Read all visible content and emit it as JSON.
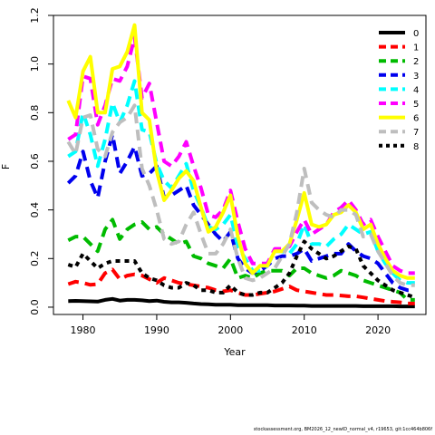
{
  "chart_data": {
    "type": "line",
    "title": "",
    "xlabel": "Year",
    "ylabel": "F",
    "xlim": [
      1976,
      2026.5
    ],
    "ylim": [
      -0.03,
      1.2
    ],
    "xticks": [
      1980,
      1990,
      2000,
      2010,
      2020
    ],
    "yticks": [
      0.0,
      0.2,
      0.4,
      0.6,
      0.8,
      1.0,
      1.2
    ],
    "grid": false,
    "legend_position": "top-right",
    "x": [
      1978,
      1979,
      1980,
      1981,
      1982,
      1983,
      1984,
      1985,
      1986,
      1987,
      1988,
      1989,
      1990,
      1991,
      1992,
      1993,
      1994,
      1995,
      1996,
      1997,
      1998,
      1999,
      2000,
      2001,
      2002,
      2003,
      2004,
      2005,
      2006,
      2007,
      2008,
      2009,
      2010,
      2011,
      2012,
      2013,
      2014,
      2015,
      2016,
      2017,
      2018,
      2019,
      2020,
      2021,
      2022,
      2023,
      2024,
      2025
    ],
    "series": [
      {
        "name": "0",
        "color": "#000000",
        "dash": "solid",
        "values": [
          0.025,
          0.026,
          0.025,
          0.024,
          0.023,
          0.03,
          0.034,
          0.027,
          0.03,
          0.03,
          0.028,
          0.025,
          0.027,
          0.022,
          0.02,
          0.02,
          0.018,
          0.015,
          0.013,
          0.012,
          0.01,
          0.01,
          0.01,
          0.008,
          0.008,
          0.008,
          0.008,
          0.008,
          0.007,
          0.007,
          0.007,
          0.006,
          0.006,
          0.005,
          0.005,
          0.005,
          0.005,
          0.005,
          0.005,
          0.005,
          0.004,
          0.004,
          0.004,
          0.004,
          0.004,
          0.003,
          0.003,
          0.003
        ]
      },
      {
        "name": "1",
        "color": "#ff0000",
        "dash": "dashed",
        "values": [
          0.095,
          0.105,
          0.1,
          0.092,
          0.095,
          0.14,
          0.155,
          0.115,
          0.13,
          0.135,
          0.13,
          0.115,
          0.1,
          0.12,
          0.11,
          0.1,
          0.095,
          0.09,
          0.085,
          0.08,
          0.07,
          0.065,
          0.07,
          0.06,
          0.05,
          0.05,
          0.055,
          0.06,
          0.065,
          0.075,
          0.085,
          0.07,
          0.065,
          0.06,
          0.055,
          0.05,
          0.05,
          0.048,
          0.045,
          0.045,
          0.04,
          0.035,
          0.03,
          0.025,
          0.022,
          0.02,
          0.015,
          0.015
        ]
      },
      {
        "name": "2",
        "color": "#00bb00",
        "dash": "dashed",
        "values": [
          0.275,
          0.29,
          0.29,
          0.26,
          0.23,
          0.32,
          0.36,
          0.28,
          0.32,
          0.34,
          0.35,
          0.32,
          0.33,
          0.3,
          0.28,
          0.26,
          0.27,
          0.21,
          0.2,
          0.18,
          0.17,
          0.16,
          0.2,
          0.12,
          0.13,
          0.12,
          0.14,
          0.15,
          0.15,
          0.15,
          0.13,
          0.16,
          0.16,
          0.14,
          0.13,
          0.12,
          0.13,
          0.15,
          0.14,
          0.13,
          0.11,
          0.1,
          0.09,
          0.08,
          0.07,
          0.06,
          0.03,
          0.03
        ]
      },
      {
        "name": "3",
        "color": "#0000ee",
        "dash": "dashed",
        "values": [
          0.51,
          0.54,
          0.64,
          0.52,
          0.45,
          0.6,
          0.71,
          0.55,
          0.6,
          0.66,
          0.54,
          0.55,
          0.58,
          0.45,
          0.46,
          0.48,
          0.5,
          0.42,
          0.38,
          0.34,
          0.3,
          0.27,
          0.31,
          0.2,
          0.16,
          0.14,
          0.15,
          0.17,
          0.2,
          0.21,
          0.21,
          0.22,
          0.24,
          0.19,
          0.2,
          0.21,
          0.22,
          0.22,
          0.26,
          0.23,
          0.21,
          0.2,
          0.18,
          0.14,
          0.1,
          0.08,
          0.07,
          0.07
        ]
      },
      {
        "name": "4",
        "color": "#00ffff",
        "dash": "dashed",
        "values": [
          0.62,
          0.64,
          0.8,
          0.71,
          0.58,
          0.69,
          0.84,
          0.76,
          0.83,
          0.93,
          0.73,
          0.72,
          0.59,
          0.52,
          0.49,
          0.54,
          0.59,
          0.48,
          0.41,
          0.33,
          0.32,
          0.34,
          0.38,
          0.25,
          0.2,
          0.15,
          0.15,
          0.17,
          0.23,
          0.23,
          0.22,
          0.26,
          0.34,
          0.26,
          0.26,
          0.25,
          0.28,
          0.3,
          0.34,
          0.32,
          0.3,
          0.31,
          0.23,
          0.18,
          0.14,
          0.11,
          0.1,
          0.1
        ]
      },
      {
        "name": "5",
        "color": "#ff00ff",
        "dash": "dashed",
        "values": [
          0.69,
          0.71,
          0.95,
          0.94,
          0.75,
          0.83,
          0.94,
          0.93,
          0.99,
          1.11,
          0.86,
          0.92,
          0.76,
          0.6,
          0.58,
          0.62,
          0.68,
          0.58,
          0.49,
          0.38,
          0.37,
          0.4,
          0.48,
          0.35,
          0.24,
          0.18,
          0.18,
          0.18,
          0.24,
          0.24,
          0.25,
          0.31,
          0.36,
          0.3,
          0.32,
          0.34,
          0.39,
          0.41,
          0.44,
          0.4,
          0.34,
          0.36,
          0.29,
          0.23,
          0.17,
          0.15,
          0.14,
          0.14
        ]
      },
      {
        "name": "6",
        "color": "#ffff00",
        "dash": "solid",
        "values": [
          0.85,
          0.78,
          0.97,
          1.03,
          0.8,
          0.8,
          0.98,
          0.99,
          1.05,
          1.16,
          0.8,
          0.77,
          0.56,
          0.44,
          0.48,
          0.53,
          0.56,
          0.52,
          0.41,
          0.31,
          0.33,
          0.39,
          0.46,
          0.29,
          0.18,
          0.14,
          0.17,
          0.17,
          0.23,
          0.23,
          0.26,
          0.36,
          0.47,
          0.34,
          0.33,
          0.34,
          0.38,
          0.39,
          0.42,
          0.39,
          0.32,
          0.34,
          0.26,
          0.2,
          0.15,
          0.13,
          0.12,
          0.12
        ]
      },
      {
        "name": "7",
        "color": "#bebebe",
        "dash": "dashed",
        "values": [
          0.68,
          0.63,
          0.78,
          0.79,
          0.65,
          0.62,
          0.72,
          0.76,
          0.78,
          0.83,
          0.57,
          0.5,
          0.4,
          0.28,
          0.26,
          0.27,
          0.34,
          0.39,
          0.3,
          0.22,
          0.22,
          0.26,
          0.32,
          0.2,
          0.12,
          0.11,
          0.12,
          0.14,
          0.16,
          0.21,
          0.26,
          0.39,
          0.57,
          0.43,
          0.4,
          0.38,
          0.37,
          0.4,
          0.4,
          0.38,
          0.29,
          0.3,
          0.23,
          0.18,
          0.13,
          0.1,
          0.09,
          0.09
        ]
      },
      {
        "name": "8",
        "color": "#000000",
        "dash": "dotted",
        "values": [
          0.175,
          0.165,
          0.22,
          0.19,
          0.16,
          0.18,
          0.19,
          0.19,
          0.19,
          0.19,
          0.14,
          0.12,
          0.11,
          0.09,
          0.08,
          0.08,
          0.1,
          0.09,
          0.07,
          0.07,
          0.06,
          0.06,
          0.09,
          0.06,
          0.05,
          0.05,
          0.06,
          0.06,
          0.08,
          0.1,
          0.14,
          0.21,
          0.27,
          0.24,
          0.22,
          0.2,
          0.21,
          0.23,
          0.25,
          0.24,
          0.17,
          0.14,
          0.11,
          0.09,
          0.07,
          0.06,
          0.05,
          0.04
        ]
      }
    ]
  },
  "footnote": "stockassessment.org, BM2026_12_newID_normal_v4, r19653, git:1cc464b806f"
}
